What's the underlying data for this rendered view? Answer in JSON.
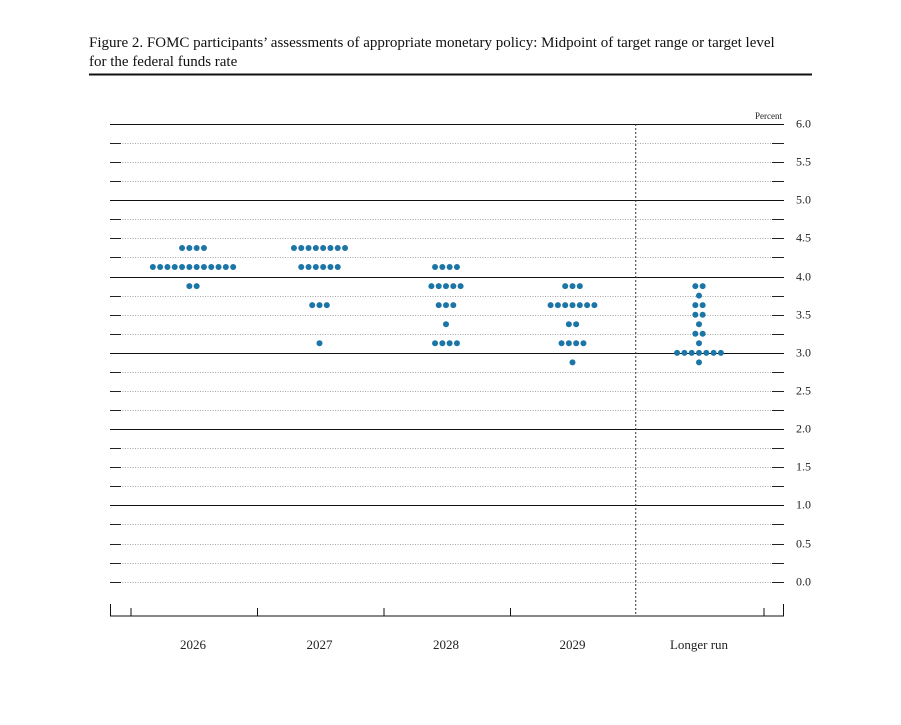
{
  "chart_data": {
    "type": "dot",
    "title": "Figure 2. FOMC participants’ assessments of appropriate monetary policy: Midpoint of target range or target level for the federal funds rate",
    "unit_label": "Percent",
    "categories": [
      "2026",
      "2027",
      "2028",
      "2029",
      "Longer run"
    ],
    "color": "#1b75a6",
    "values": [
      [
        4.375,
        4.375,
        4.375,
        4.375,
        4.125,
        4.125,
        4.125,
        4.125,
        4.125,
        4.125,
        4.125,
        4.125,
        4.125,
        4.125,
        4.125,
        4.125,
        3.875,
        3.875
      ],
      [
        4.375,
        4.375,
        4.375,
        4.375,
        4.375,
        4.375,
        4.375,
        4.375,
        4.125,
        4.125,
        4.125,
        4.125,
        4.125,
        4.125,
        3.625,
        3.625,
        3.625,
        3.125
      ],
      [
        4.125,
        4.125,
        4.125,
        4.125,
        3.875,
        3.875,
        3.875,
        3.875,
        3.875,
        3.625,
        3.625,
        3.625,
        3.375,
        3.125,
        3.125,
        3.125,
        3.125
      ],
      [
        3.875,
        3.875,
        3.875,
        3.625,
        3.625,
        3.625,
        3.625,
        3.625,
        3.625,
        3.625,
        3.375,
        3.375,
        3.125,
        3.125,
        3.125,
        3.125,
        2.875
      ],
      [
        3.875,
        3.875,
        3.75,
        3.625,
        3.625,
        3.5,
        3.5,
        3.375,
        3.25,
        3.25,
        3.125,
        3,
        3,
        3,
        3,
        3,
        3,
        3,
        2.875
      ]
    ],
    "ylim": [
      -0.45,
      6
    ],
    "yticks": [
      {
        "value": 0,
        "label": "0.0"
      },
      0.5,
      {
        "value": 1,
        "label": "1.0"
      },
      1.5,
      {
        "value": 2,
        "label": "2.0"
      },
      2.5,
      {
        "value": 3,
        "label": "3.0"
      },
      3.5,
      {
        "value": 4,
        "label": "4.0"
      },
      4.5,
      {
        "value": 5,
        "label": "5.0"
      },
      5.5,
      {
        "value": 6,
        "label": "6.0"
      }
    ],
    "minor_tick_step": 0.25,
    "grid": true
  }
}
